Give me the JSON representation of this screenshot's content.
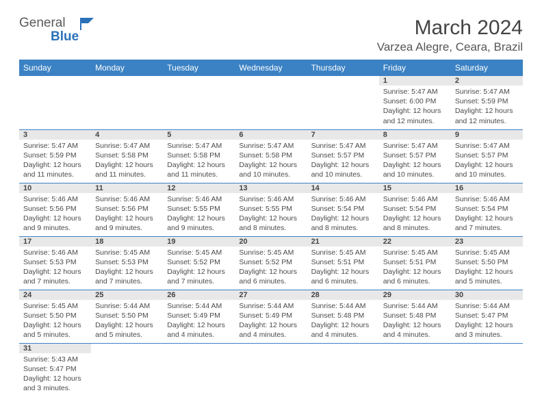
{
  "logo": {
    "text1": "General",
    "text2": "Blue"
  },
  "title": "March 2024",
  "location": "Varzea Alegre, Ceara, Brazil",
  "colors": {
    "header_bg": "#3b82c4",
    "header_fg": "#ffffff",
    "daynum_bg": "#e8e8e8",
    "cell_border": "#3b82c4",
    "text": "#4a4a4a"
  },
  "weekdays": [
    "Sunday",
    "Monday",
    "Tuesday",
    "Wednesday",
    "Thursday",
    "Friday",
    "Saturday"
  ],
  "weeks": [
    [
      null,
      null,
      null,
      null,
      null,
      {
        "n": "1",
        "sr": "5:47 AM",
        "ss": "6:00 PM",
        "dl": "12 hours and 12 minutes."
      },
      {
        "n": "2",
        "sr": "5:47 AM",
        "ss": "5:59 PM",
        "dl": "12 hours and 12 minutes."
      }
    ],
    [
      {
        "n": "3",
        "sr": "5:47 AM",
        "ss": "5:59 PM",
        "dl": "12 hours and 11 minutes."
      },
      {
        "n": "4",
        "sr": "5:47 AM",
        "ss": "5:58 PM",
        "dl": "12 hours and 11 minutes."
      },
      {
        "n": "5",
        "sr": "5:47 AM",
        "ss": "5:58 PM",
        "dl": "12 hours and 11 minutes."
      },
      {
        "n": "6",
        "sr": "5:47 AM",
        "ss": "5:58 PM",
        "dl": "12 hours and 10 minutes."
      },
      {
        "n": "7",
        "sr": "5:47 AM",
        "ss": "5:57 PM",
        "dl": "12 hours and 10 minutes."
      },
      {
        "n": "8",
        "sr": "5:47 AM",
        "ss": "5:57 PM",
        "dl": "12 hours and 10 minutes."
      },
      {
        "n": "9",
        "sr": "5:47 AM",
        "ss": "5:57 PM",
        "dl": "12 hours and 10 minutes."
      }
    ],
    [
      {
        "n": "10",
        "sr": "5:46 AM",
        "ss": "5:56 PM",
        "dl": "12 hours and 9 minutes."
      },
      {
        "n": "11",
        "sr": "5:46 AM",
        "ss": "5:56 PM",
        "dl": "12 hours and 9 minutes."
      },
      {
        "n": "12",
        "sr": "5:46 AM",
        "ss": "5:55 PM",
        "dl": "12 hours and 9 minutes."
      },
      {
        "n": "13",
        "sr": "5:46 AM",
        "ss": "5:55 PM",
        "dl": "12 hours and 8 minutes."
      },
      {
        "n": "14",
        "sr": "5:46 AM",
        "ss": "5:54 PM",
        "dl": "12 hours and 8 minutes."
      },
      {
        "n": "15",
        "sr": "5:46 AM",
        "ss": "5:54 PM",
        "dl": "12 hours and 8 minutes."
      },
      {
        "n": "16",
        "sr": "5:46 AM",
        "ss": "5:54 PM",
        "dl": "12 hours and 7 minutes."
      }
    ],
    [
      {
        "n": "17",
        "sr": "5:46 AM",
        "ss": "5:53 PM",
        "dl": "12 hours and 7 minutes."
      },
      {
        "n": "18",
        "sr": "5:45 AM",
        "ss": "5:53 PM",
        "dl": "12 hours and 7 minutes."
      },
      {
        "n": "19",
        "sr": "5:45 AM",
        "ss": "5:52 PM",
        "dl": "12 hours and 7 minutes."
      },
      {
        "n": "20",
        "sr": "5:45 AM",
        "ss": "5:52 PM",
        "dl": "12 hours and 6 minutes."
      },
      {
        "n": "21",
        "sr": "5:45 AM",
        "ss": "5:51 PM",
        "dl": "12 hours and 6 minutes."
      },
      {
        "n": "22",
        "sr": "5:45 AM",
        "ss": "5:51 PM",
        "dl": "12 hours and 6 minutes."
      },
      {
        "n": "23",
        "sr": "5:45 AM",
        "ss": "5:50 PM",
        "dl": "12 hours and 5 minutes."
      }
    ],
    [
      {
        "n": "24",
        "sr": "5:45 AM",
        "ss": "5:50 PM",
        "dl": "12 hours and 5 minutes."
      },
      {
        "n": "25",
        "sr": "5:44 AM",
        "ss": "5:50 PM",
        "dl": "12 hours and 5 minutes."
      },
      {
        "n": "26",
        "sr": "5:44 AM",
        "ss": "5:49 PM",
        "dl": "12 hours and 4 minutes."
      },
      {
        "n": "27",
        "sr": "5:44 AM",
        "ss": "5:49 PM",
        "dl": "12 hours and 4 minutes."
      },
      {
        "n": "28",
        "sr": "5:44 AM",
        "ss": "5:48 PM",
        "dl": "12 hours and 4 minutes."
      },
      {
        "n": "29",
        "sr": "5:44 AM",
        "ss": "5:48 PM",
        "dl": "12 hours and 4 minutes."
      },
      {
        "n": "30",
        "sr": "5:44 AM",
        "ss": "5:47 PM",
        "dl": "12 hours and 3 minutes."
      }
    ],
    [
      {
        "n": "31",
        "sr": "5:43 AM",
        "ss": "5:47 PM",
        "dl": "12 hours and 3 minutes."
      },
      null,
      null,
      null,
      null,
      null,
      null
    ]
  ],
  "labels": {
    "sunrise": "Sunrise:",
    "sunset": "Sunset:",
    "daylight": "Daylight:"
  }
}
